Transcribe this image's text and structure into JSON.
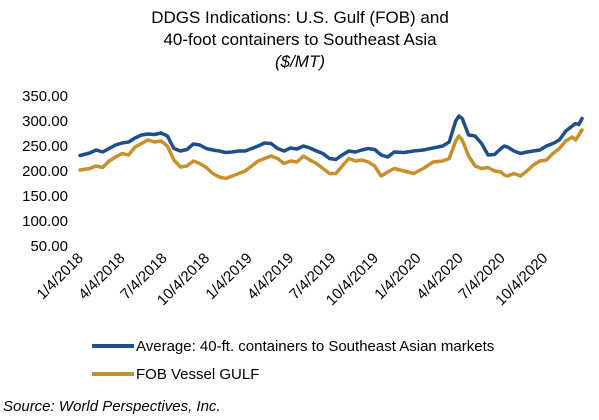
{
  "chart_data": {
    "type": "line",
    "title_line1": "DDGS Indications: U.S. Gulf (FOB) and",
    "title_line2": "40-foot containers to Southeast Asia",
    "subtitle": "($/MT)",
    "source": "Source: World Perspectives, Inc.",
    "ylim": [
      50,
      350
    ],
    "yticks": [
      "350.00",
      "300.00",
      "250.00",
      "200.00",
      "150.00",
      "100.00",
      "50.00"
    ],
    "ytick_values": [
      350,
      300,
      250,
      200,
      150,
      100,
      50
    ],
    "xticks": [
      "1/4/2018",
      "4/4/2018",
      "7/4/2018",
      "10/4/2018",
      "1/4/2019",
      "4/4/2019",
      "7/4/2019",
      "10/4/2019",
      "1/4/2020",
      "4/4/2020",
      "7/4/2020",
      "10/4/2020"
    ],
    "xtick_dates": [
      "2018-01-04",
      "2018-04-04",
      "2018-07-04",
      "2018-10-04",
      "2019-01-04",
      "2019-04-04",
      "2019-07-04",
      "2019-10-04",
      "2020-01-04",
      "2020-04-04",
      "2020-07-04",
      "2020-10-04"
    ],
    "x_range": [
      "2018-01-04",
      "2020-12-24"
    ],
    "grid": false,
    "legend_position": "bottom",
    "colors": {
      "containers": "#1f4e8c",
      "fob": "#c8902c"
    },
    "series": [
      {
        "name": "Average: 40-ft. containers to Southeast Asian markets",
        "color": "#1f4e8c",
        "points": [
          [
            "2018-01-04",
            231
          ],
          [
            "2018-01-25",
            236
          ],
          [
            "2018-02-08",
            242
          ],
          [
            "2018-02-22",
            238
          ],
          [
            "2018-03-08",
            245
          ],
          [
            "2018-03-22",
            252
          ],
          [
            "2018-04-05",
            256
          ],
          [
            "2018-04-19",
            258
          ],
          [
            "2018-05-03",
            266
          ],
          [
            "2018-05-17",
            272
          ],
          [
            "2018-05-31",
            274
          ],
          [
            "2018-06-14",
            273
          ],
          [
            "2018-06-28",
            276
          ],
          [
            "2018-07-12",
            270
          ],
          [
            "2018-07-26",
            245
          ],
          [
            "2018-08-09",
            240
          ],
          [
            "2018-08-23",
            243
          ],
          [
            "2018-09-06",
            254
          ],
          [
            "2018-09-20",
            252
          ],
          [
            "2018-10-04",
            245
          ],
          [
            "2018-10-18",
            242
          ],
          [
            "2018-11-01",
            240
          ],
          [
            "2018-11-15",
            237
          ],
          [
            "2018-11-29",
            238
          ],
          [
            "2018-12-13",
            240
          ],
          [
            "2018-12-27",
            240
          ],
          [
            "2019-01-10",
            245
          ],
          [
            "2019-01-24",
            250
          ],
          [
            "2019-02-07",
            256
          ],
          [
            "2019-02-21",
            255
          ],
          [
            "2019-03-07",
            245
          ],
          [
            "2019-03-21",
            240
          ],
          [
            "2019-04-04",
            246
          ],
          [
            "2019-04-18",
            244
          ],
          [
            "2019-05-02",
            250
          ],
          [
            "2019-05-16",
            246
          ],
          [
            "2019-05-30",
            240
          ],
          [
            "2019-06-13",
            235
          ],
          [
            "2019-06-27",
            225
          ],
          [
            "2019-07-11",
            223
          ],
          [
            "2019-07-25",
            232
          ],
          [
            "2019-08-08",
            240
          ],
          [
            "2019-08-22",
            238
          ],
          [
            "2019-09-05",
            242
          ],
          [
            "2019-09-19",
            245
          ],
          [
            "2019-10-03",
            243
          ],
          [
            "2019-10-17",
            232
          ],
          [
            "2019-10-31",
            228
          ],
          [
            "2019-11-14",
            238
          ],
          [
            "2019-12-05",
            237
          ],
          [
            "2019-12-26",
            240
          ],
          [
            "2020-01-16",
            242
          ],
          [
            "2020-02-06",
            246
          ],
          [
            "2020-02-27",
            250
          ],
          [
            "2020-03-12",
            258
          ],
          [
            "2020-03-26",
            300
          ],
          [
            "2020-04-02",
            310
          ],
          [
            "2020-04-09",
            305
          ],
          [
            "2020-04-23",
            272
          ],
          [
            "2020-05-07",
            270
          ],
          [
            "2020-05-21",
            255
          ],
          [
            "2020-06-04",
            232
          ],
          [
            "2020-06-18",
            233
          ],
          [
            "2020-07-02",
            245
          ],
          [
            "2020-07-09",
            250
          ],
          [
            "2020-07-16",
            248
          ],
          [
            "2020-07-30",
            240
          ],
          [
            "2020-08-13",
            235
          ],
          [
            "2020-08-27",
            238
          ],
          [
            "2020-09-10",
            240
          ],
          [
            "2020-09-24",
            242
          ],
          [
            "2020-10-08",
            250
          ],
          [
            "2020-10-22",
            255
          ],
          [
            "2020-11-05",
            262
          ],
          [
            "2020-11-19",
            280
          ],
          [
            "2020-12-03",
            290
          ],
          [
            "2020-12-10",
            295
          ],
          [
            "2020-12-17",
            293
          ],
          [
            "2020-12-24",
            305
          ]
        ]
      },
      {
        "name": "FOB Vessel GULF",
        "color": "#c8902c",
        "points": [
          [
            "2018-01-04",
            202
          ],
          [
            "2018-01-25",
            205
          ],
          [
            "2018-02-08",
            210
          ],
          [
            "2018-02-22",
            207
          ],
          [
            "2018-03-08",
            220
          ],
          [
            "2018-03-22",
            228
          ],
          [
            "2018-04-05",
            235
          ],
          [
            "2018-04-19",
            232
          ],
          [
            "2018-05-03",
            248
          ],
          [
            "2018-05-17",
            255
          ],
          [
            "2018-05-31",
            262
          ],
          [
            "2018-06-14",
            258
          ],
          [
            "2018-06-28",
            260
          ],
          [
            "2018-07-12",
            250
          ],
          [
            "2018-07-26",
            222
          ],
          [
            "2018-08-09",
            208
          ],
          [
            "2018-08-23",
            210
          ],
          [
            "2018-09-06",
            220
          ],
          [
            "2018-09-20",
            215
          ],
          [
            "2018-10-04",
            207
          ],
          [
            "2018-10-18",
            195
          ],
          [
            "2018-11-01",
            188
          ],
          [
            "2018-11-15",
            185
          ],
          [
            "2018-11-29",
            190
          ],
          [
            "2018-12-13",
            195
          ],
          [
            "2018-12-27",
            200
          ],
          [
            "2019-01-10",
            210
          ],
          [
            "2019-01-24",
            220
          ],
          [
            "2019-02-07",
            225
          ],
          [
            "2019-02-21",
            230
          ],
          [
            "2019-03-07",
            225
          ],
          [
            "2019-03-21",
            215
          ],
          [
            "2019-04-04",
            220
          ],
          [
            "2019-04-18",
            218
          ],
          [
            "2019-05-02",
            230
          ],
          [
            "2019-05-16",
            222
          ],
          [
            "2019-05-30",
            215
          ],
          [
            "2019-06-13",
            205
          ],
          [
            "2019-06-27",
            195
          ],
          [
            "2019-07-11",
            195
          ],
          [
            "2019-07-25",
            210
          ],
          [
            "2019-08-08",
            225
          ],
          [
            "2019-08-22",
            220
          ],
          [
            "2019-09-05",
            222
          ],
          [
            "2019-09-19",
            218
          ],
          [
            "2019-10-03",
            210
          ],
          [
            "2019-10-17",
            190
          ],
          [
            "2019-10-31",
            198
          ],
          [
            "2019-11-14",
            205
          ],
          [
            "2019-12-05",
            200
          ],
          [
            "2019-12-26",
            195
          ],
          [
            "2020-01-16",
            205
          ],
          [
            "2020-02-06",
            218
          ],
          [
            "2020-02-27",
            220
          ],
          [
            "2020-03-12",
            225
          ],
          [
            "2020-03-26",
            260
          ],
          [
            "2020-04-02",
            270
          ],
          [
            "2020-04-09",
            262
          ],
          [
            "2020-04-23",
            230
          ],
          [
            "2020-05-07",
            210
          ],
          [
            "2020-05-21",
            205
          ],
          [
            "2020-06-04",
            207
          ],
          [
            "2020-06-18",
            200
          ],
          [
            "2020-07-02",
            198
          ],
          [
            "2020-07-09",
            192
          ],
          [
            "2020-07-16",
            190
          ],
          [
            "2020-07-30",
            195
          ],
          [
            "2020-08-13",
            190
          ],
          [
            "2020-08-27",
            200
          ],
          [
            "2020-09-10",
            212
          ],
          [
            "2020-09-24",
            220
          ],
          [
            "2020-10-08",
            222
          ],
          [
            "2020-10-22",
            235
          ],
          [
            "2020-11-05",
            245
          ],
          [
            "2020-11-19",
            260
          ],
          [
            "2020-12-03",
            268
          ],
          [
            "2020-12-10",
            262
          ],
          [
            "2020-12-17",
            272
          ],
          [
            "2020-12-24",
            282
          ]
        ]
      }
    ]
  }
}
